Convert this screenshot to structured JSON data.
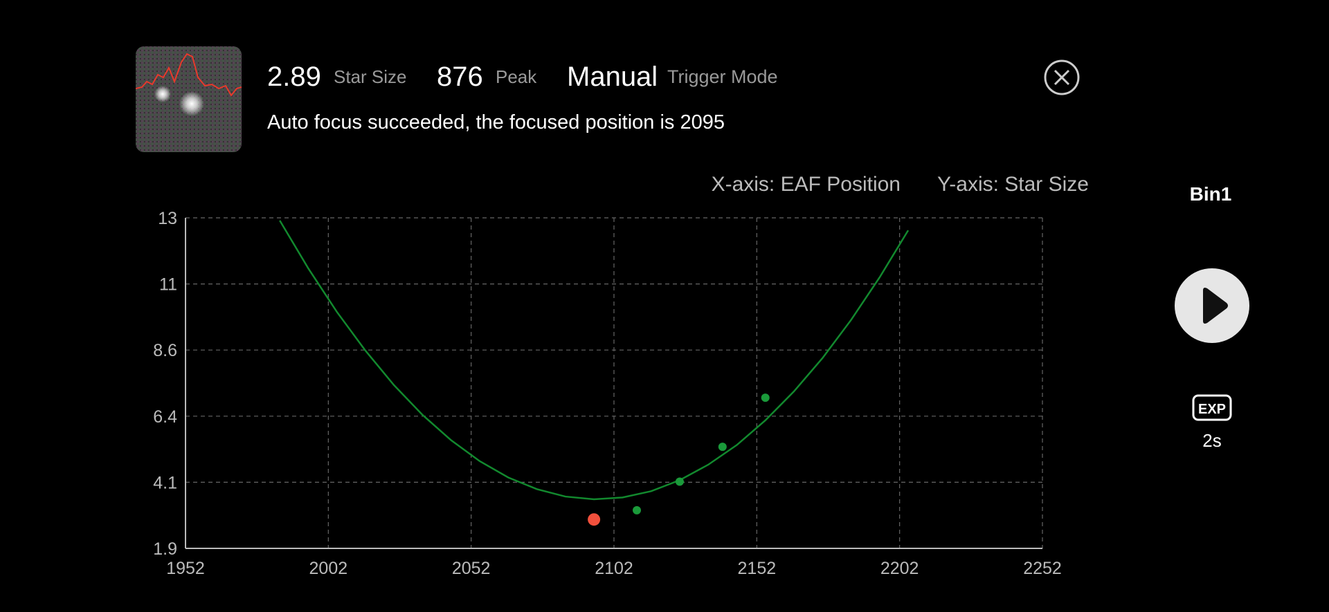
{
  "header": {
    "star_size": "2.89",
    "star_size_label": "Star Size",
    "peak": "876",
    "peak_label": "Peak",
    "trigger_mode": "Manual",
    "trigger_mode_label": "Trigger Mode",
    "message": "Auto focus succeeded, the focused position is 2095"
  },
  "sidebar": {
    "bin": "Bin1",
    "exp_icon": "EXP",
    "exposure": "2s"
  },
  "chart_data": {
    "type": "scatter",
    "x_label": "X-axis: EAF Position",
    "y_label": "Y-axis: Star Size",
    "xlim": [
      1952,
      2252
    ],
    "xticks": [
      1952,
      2002,
      2052,
      2102,
      2152,
      2202,
      2252
    ],
    "ylim": [
      1.92,
      13.02
    ],
    "yticks": [
      {
        "value": 1.92,
        "label": "1.9"
      },
      {
        "value": 4.14,
        "label": "4.1"
      },
      {
        "value": 6.36,
        "label": "6.4"
      },
      {
        "value": 8.58,
        "label": "8.6"
      },
      {
        "value": 10.8,
        "label": "11"
      },
      {
        "value": 13.02,
        "label": "13"
      }
    ],
    "grid": true,
    "series": [
      {
        "type": "line",
        "color": "#12892e",
        "x": [
          1985,
          1995,
          2005,
          2015,
          2025,
          2035,
          2045,
          2055,
          2065,
          2075,
          2085,
          2095,
          2105,
          2115,
          2125,
          2135,
          2145,
          2155,
          2165,
          2175,
          2185,
          2195,
          2205
        ],
        "values": [
          12.93,
          11.32,
          9.86,
          8.56,
          7.4,
          6.4,
          5.55,
          4.85,
          4.3,
          3.91,
          3.66,
          3.57,
          3.63,
          3.84,
          4.21,
          4.73,
          5.39,
          6.22,
          7.19,
          8.31,
          9.59,
          11.02,
          12.6
        ]
      },
      {
        "type": "scatter",
        "color": "#1a9a3a",
        "x": [
          2110,
          2125,
          2140,
          2155
        ],
        "values": [
          3.2,
          4.16,
          5.33,
          6.98
        ]
      },
      {
        "type": "scatter",
        "color": "#f2503c",
        "x": [
          2095
        ],
        "values": [
          2.89
        ]
      }
    ]
  }
}
